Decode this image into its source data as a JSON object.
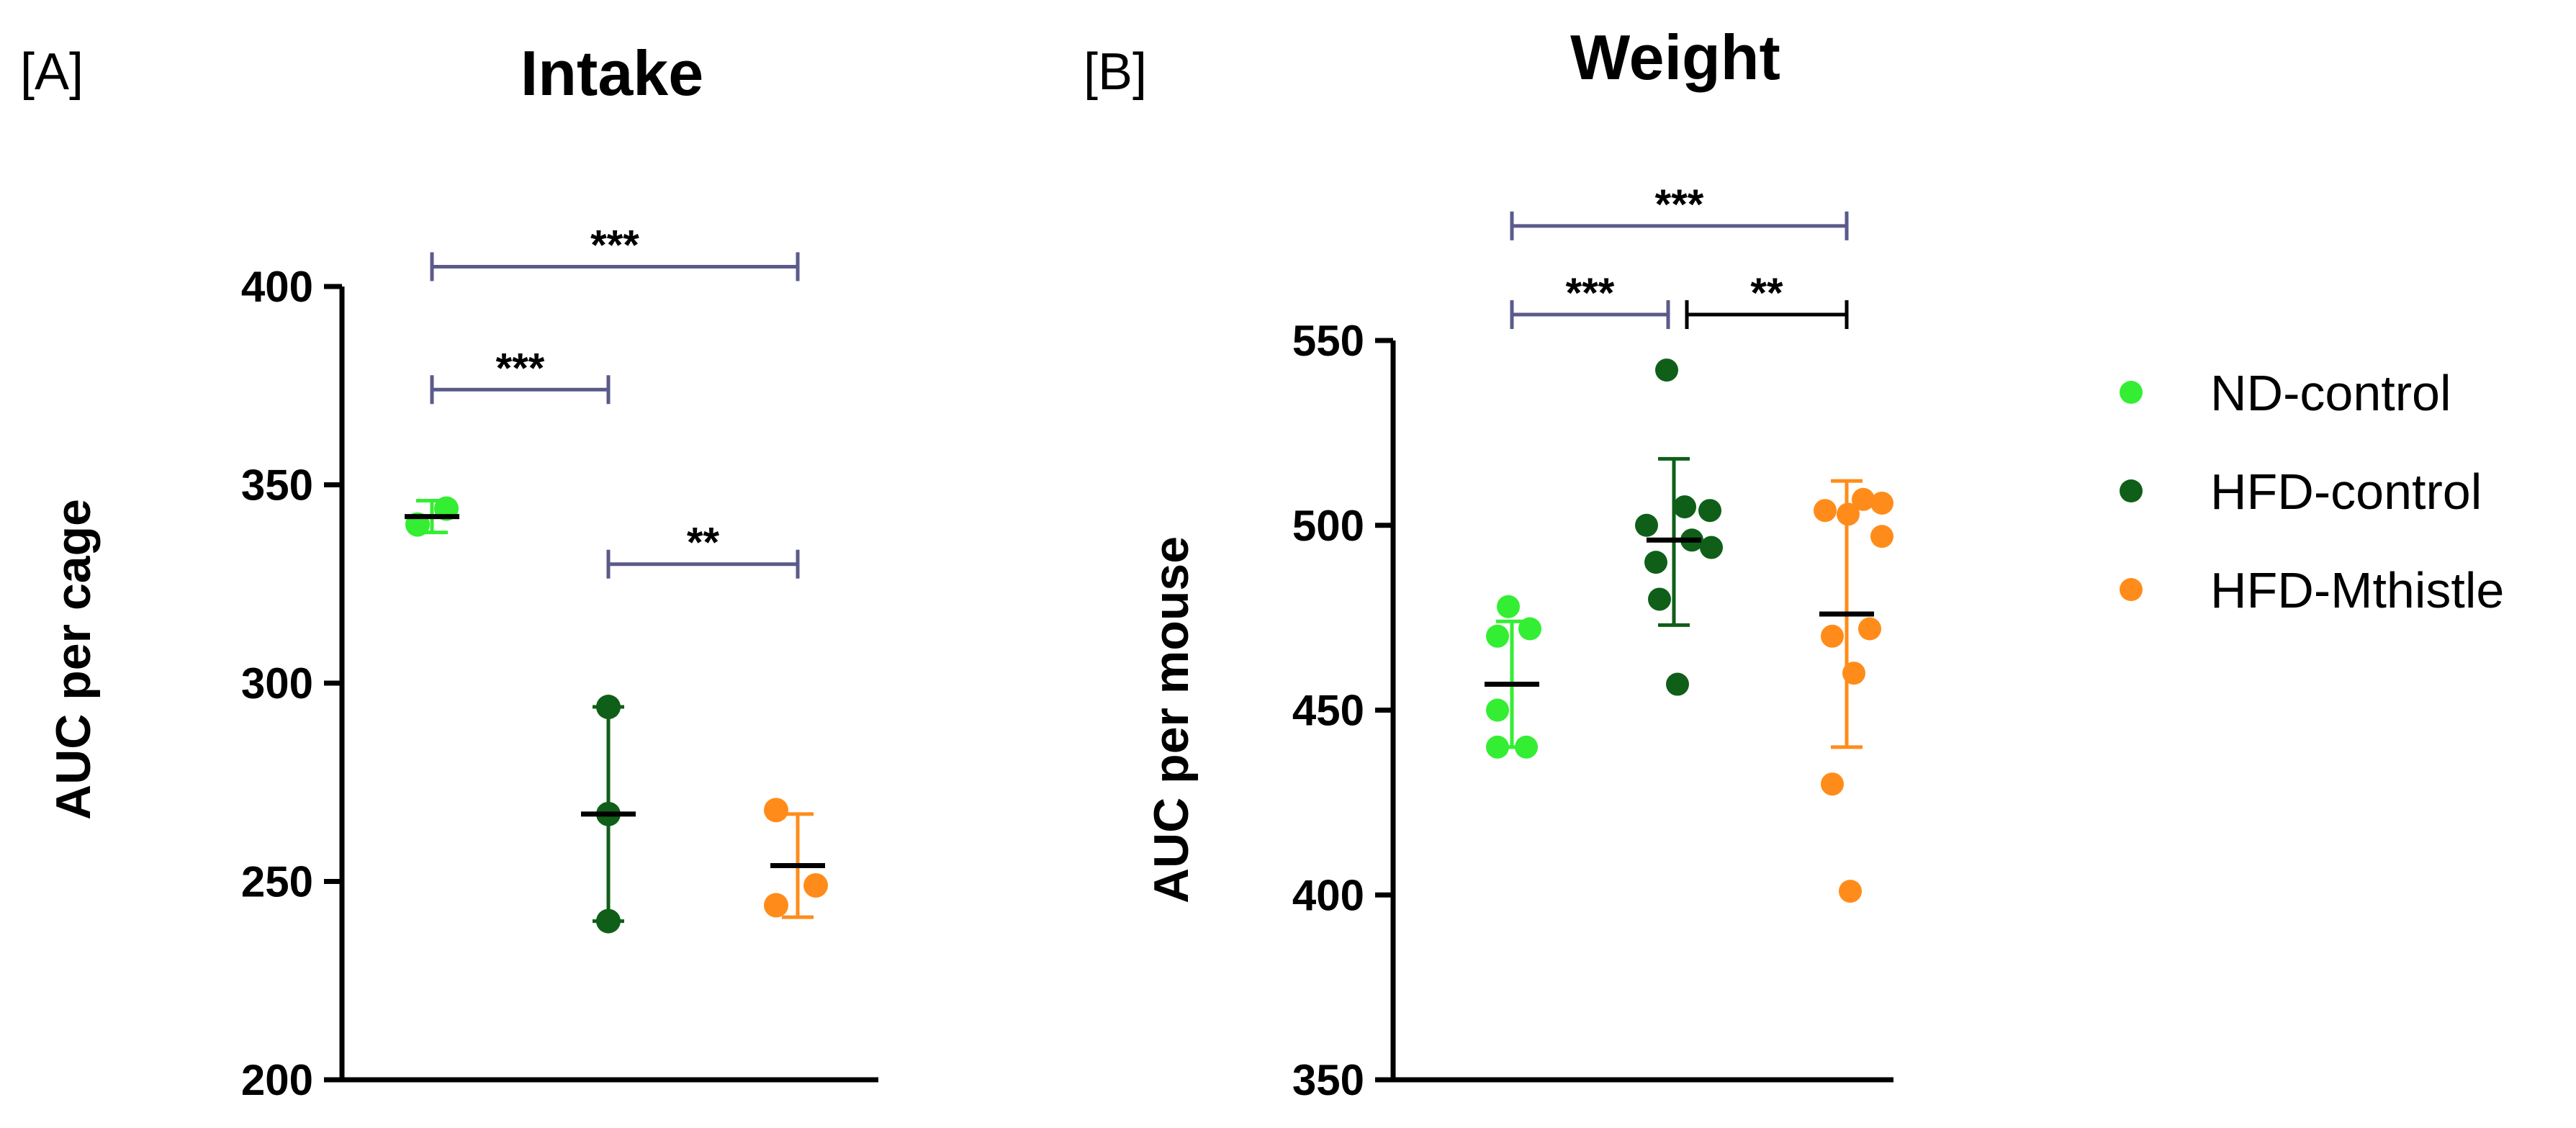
{
  "chart_data": [
    {
      "type": "scatter",
      "panel_label": "[A]",
      "title": "Intake",
      "xlabel": "",
      "ylabel": "AUC per cage",
      "ylim": [
        200,
        400
      ],
      "yticks": [
        "200",
        "250",
        "300",
        "350",
        "400"
      ],
      "series": [
        {
          "name": "ND-control",
          "color": "#33ee33",
          "points": [
            340,
            344
          ],
          "mean": 342,
          "err": [
            338,
            346
          ]
        },
        {
          "name": "HFD-control",
          "color": "#0f5f18",
          "points": [
            294,
            267,
            240
          ],
          "mean": 267,
          "err": [
            240,
            294
          ]
        },
        {
          "name": "HFD-Mthistle",
          "color": "#ff8c1a",
          "points": [
            268,
            249,
            244
          ],
          "mean": 254,
          "err": [
            241,
            267
          ]
        }
      ],
      "significance": [
        {
          "from": 0,
          "to": 2,
          "label": "***",
          "y": 405,
          "color": "#5a5a8a"
        },
        {
          "from": 0,
          "to": 1,
          "label": "***",
          "y": 374,
          "color": "#5a5a8a"
        },
        {
          "from": 1,
          "to": 2,
          "label": "**",
          "y": 330,
          "color": "#5a5a8a"
        }
      ]
    },
    {
      "type": "scatter",
      "panel_label": "[B]",
      "title": "Weight",
      "xlabel": "",
      "ylabel": "AUC per mouse",
      "ylim": [
        350,
        550
      ],
      "yticks": [
        "350",
        "400",
        "450",
        "500",
        "550"
      ],
      "series": [
        {
          "name": "ND-control",
          "color": "#33ee33",
          "points": [
            478,
            472,
            470,
            450,
            440,
            440
          ],
          "mean": 457,
          "err": [
            440,
            474
          ]
        },
        {
          "name": "HFD-control",
          "color": "#0f5f18",
          "points": [
            542,
            505,
            504,
            500,
            496,
            494,
            490,
            480,
            457
          ],
          "mean": 496,
          "err": [
            473,
            518
          ]
        },
        {
          "name": "HFD-Mthistle",
          "color": "#ff8c1a",
          "points": [
            507,
            506,
            504,
            503,
            497,
            472,
            470,
            460,
            430,
            401
          ],
          "mean": 476,
          "err": [
            440,
            512
          ]
        }
      ],
      "significance": [
        {
          "from": 0,
          "to": 2,
          "label": "***",
          "y": 581,
          "color": "#5a5a8a"
        },
        {
          "from": 0,
          "to": 1,
          "label": "***",
          "y": 557,
          "color": "#5a5a8a"
        },
        {
          "from": 1,
          "to": 2,
          "label": "**",
          "y": 557,
          "color": "#000000"
        }
      ]
    }
  ],
  "legend": {
    "entries": [
      {
        "label": "ND-control",
        "color": "#33ee33"
      },
      {
        "label": "HFD-control",
        "color": "#0f5f18"
      },
      {
        "label": "HFD-Mthistle",
        "color": "#ff8c1a"
      }
    ]
  }
}
